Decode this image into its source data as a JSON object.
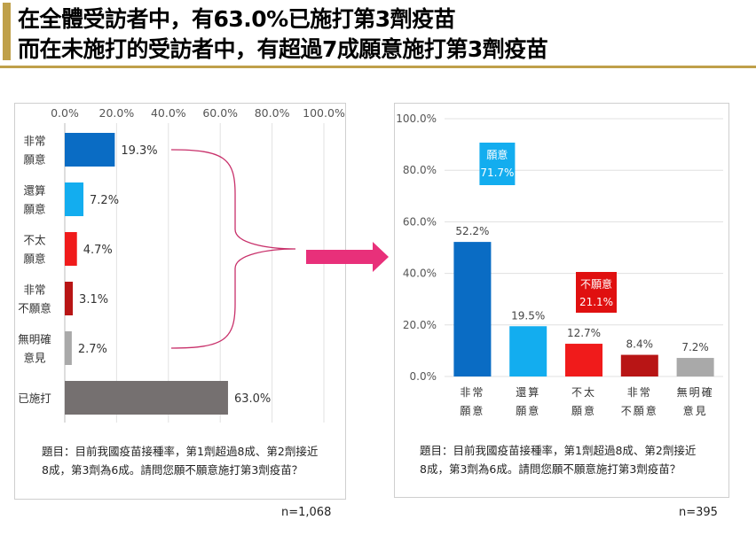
{
  "header": {
    "line1": "在全體受訪者中，有63.0%已施打第3劑疫苗",
    "line2": "而在未施打的受訪者中，有超過7成願意施打第3劑疫苗",
    "accent_color": "#bfa04a"
  },
  "left_note": {
    "line1": "題目：目前我國疫苗接種率，第1劑超過8成、第2劑接近",
    "line2": "8成，第3劑為6成。請問您願不願意施打第3劑疫苗？"
  },
  "right_note": {
    "line1": "題目：目前我國疫苗接種率，第1劑超過8成、第2劑接近",
    "line2": "8成，第3劑為6成。請問您願不願意施打第3劑疫苗？"
  },
  "left_n": "n=1,068",
  "right_n": "n=395",
  "arrow_color": "#e8307a",
  "chart_data": [
    {
      "type": "bar",
      "orientation": "horizontal",
      "categories": [
        [
          "非常",
          "願意"
        ],
        [
          "還算",
          "願意"
        ],
        [
          "不太",
          "願意"
        ],
        [
          "非常",
          "不願意"
        ],
        [
          "無明確",
          "意見"
        ],
        [
          "已施打"
        ]
      ],
      "values": [
        19.3,
        7.2,
        4.7,
        3.1,
        2.7,
        63.0
      ],
      "value_labels": [
        "19.3%",
        "7.2%",
        "4.7%",
        "3.1%",
        "2.7%",
        "63.0%"
      ],
      "colors": [
        "#0a6cc4",
        "#13adef",
        "#f01b1b",
        "#b81515",
        "#a9a9a9",
        "#757070"
      ],
      "xlim": [
        0,
        100
      ],
      "tick_labels": [
        "0.0%",
        "20.0%",
        "40.0%",
        "60.0%",
        "80.0%",
        "100.0%"
      ],
      "tick_values": [
        0,
        20,
        40,
        60,
        80,
        100
      ],
      "axis_position": "top",
      "grid": true
    },
    {
      "type": "bar",
      "orientation": "vertical",
      "categories": [
        [
          "非常",
          "願意"
        ],
        [
          "還算",
          "願意"
        ],
        [
          "不太",
          "願意"
        ],
        [
          "非常",
          "不願意"
        ],
        [
          "無明確",
          "意見"
        ]
      ],
      "values": [
        52.2,
        19.5,
        12.7,
        8.4,
        7.2
      ],
      "value_labels": [
        "52.2%",
        "19.5%",
        "12.7%",
        "8.4%",
        "7.2%"
      ],
      "colors": [
        "#0a6cc4",
        "#13adef",
        "#f01b1b",
        "#b81515",
        "#a9a9a9"
      ],
      "ylim": [
        0,
        100
      ],
      "tick_labels": [
        "0.0%",
        "20.0%",
        "40.0%",
        "60.0%",
        "80.0%",
        "100.0%"
      ],
      "tick_values": [
        0,
        20,
        40,
        60,
        80,
        100
      ],
      "grid": true,
      "annotations": [
        {
          "line1": "願意",
          "line2": "71.7%",
          "color": "#13adef",
          "value": 71.7
        },
        {
          "line1": "不願意",
          "line2": "21.1%",
          "color": "#e01010",
          "value": 21.1
        }
      ]
    }
  ]
}
